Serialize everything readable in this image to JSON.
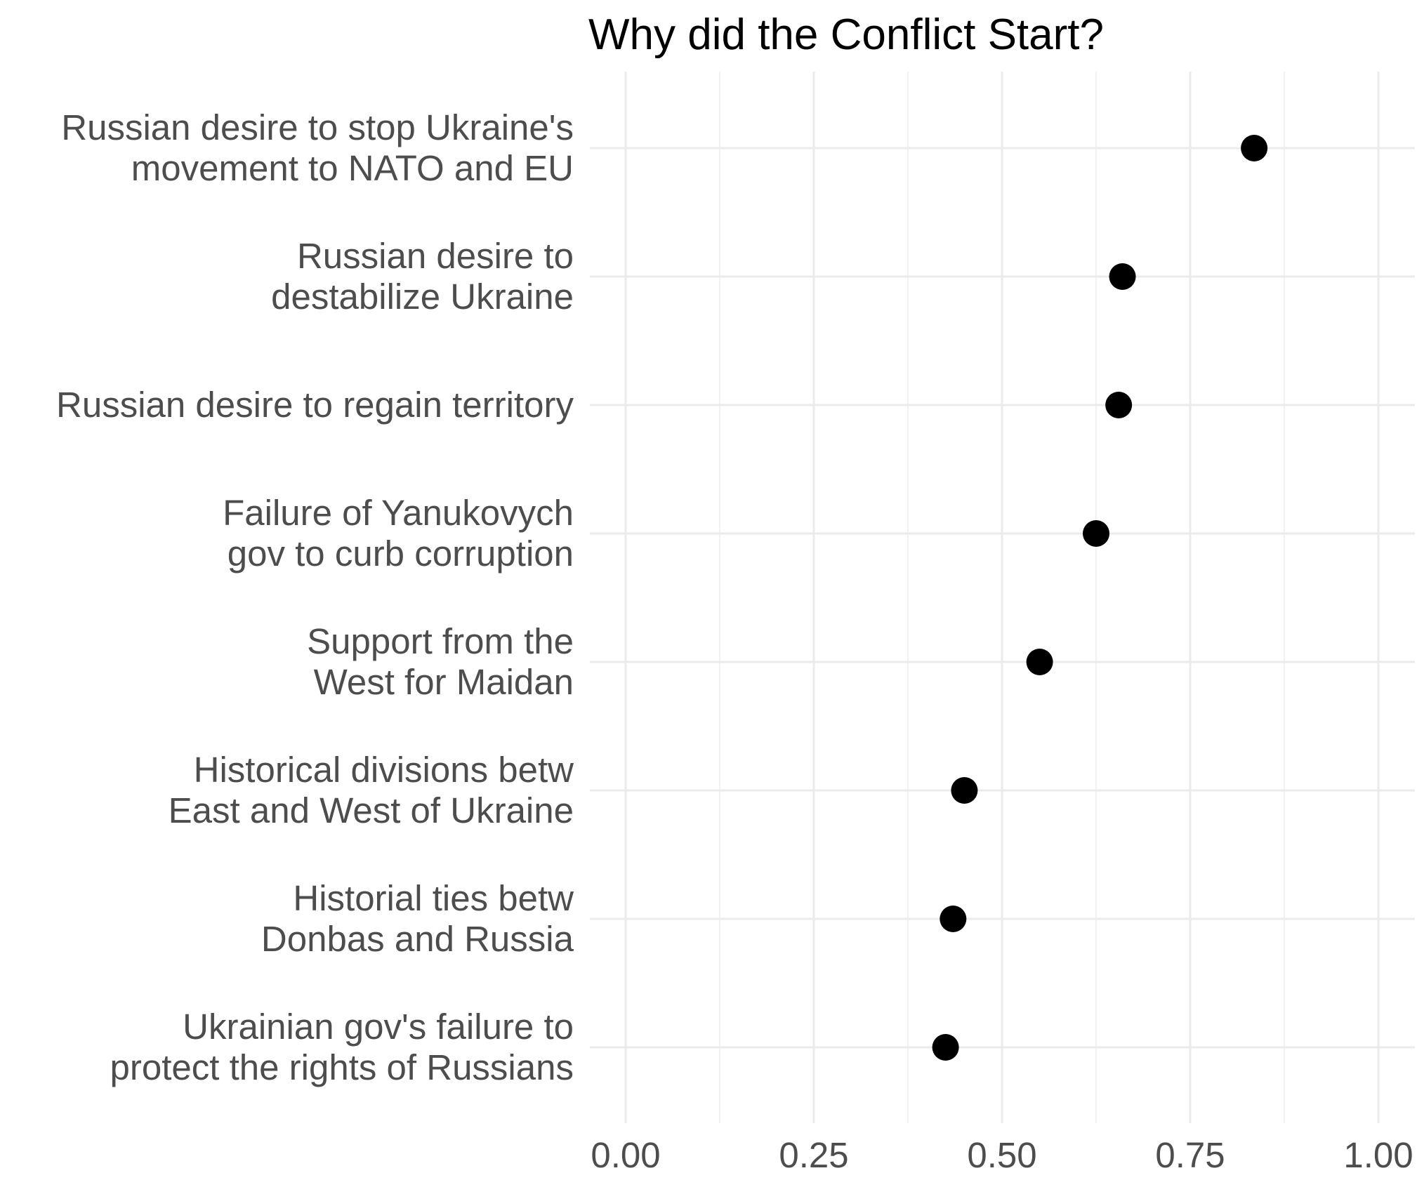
{
  "chart_data": {
    "type": "scatter",
    "title": "Why did the Conflict Start?",
    "xlabel": "",
    "ylabel": "",
    "xlim": [
      0,
      1
    ],
    "x_ticks": [
      "0.00",
      "0.25",
      "0.50",
      "0.75",
      "1.00"
    ],
    "x_tick_values": [
      0,
      0.25,
      0.5,
      0.75,
      1.0
    ],
    "grid": true,
    "legend": "none",
    "point_color": "#000000",
    "categories": [
      {
        "lines": [
          "Russian desire to stop Ukraine's",
          "movement to NATO and EU"
        ],
        "value": 0.835
      },
      {
        "lines": [
          "Russian desire to",
          "destabilize Ukraine"
        ],
        "value": 0.66
      },
      {
        "lines": [
          "Russian desire to regain territory"
        ],
        "value": 0.655
      },
      {
        "lines": [
          "Failure of Yanukovych",
          "gov to curb corruption"
        ],
        "value": 0.625
      },
      {
        "lines": [
          "Support from the",
          "West for Maidan"
        ],
        "value": 0.55
      },
      {
        "lines": [
          "Historical divisions betw",
          "East and West of Ukraine"
        ],
        "value": 0.45
      },
      {
        "lines": [
          "Historial ties betw",
          "Donbas and Russia"
        ],
        "value": 0.435
      },
      {
        "lines": [
          "Ukrainian gov's failure to",
          "protect the rights of Russians"
        ],
        "value": 0.425
      }
    ]
  }
}
